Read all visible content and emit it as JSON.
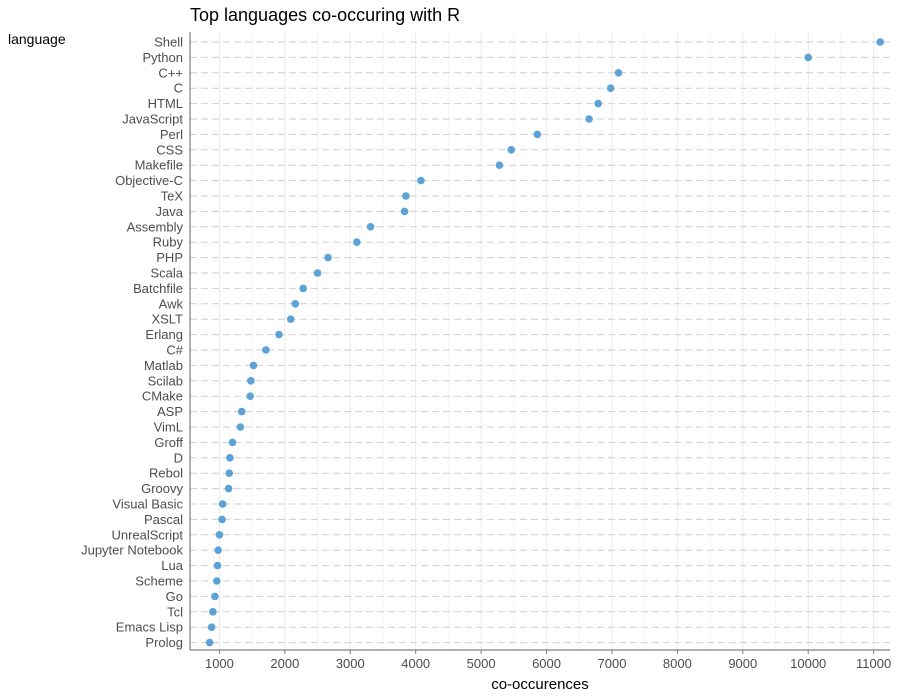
{
  "chart_data": {
    "type": "scatter",
    "title": "Top languages co-occuring with R",
    "xlabel": "co-occurences",
    "ylabel": "language",
    "xlim": [
      550,
      11250
    ],
    "x_ticks": [
      1000,
      2000,
      3000,
      4000,
      5000,
      6000,
      7000,
      8000,
      9000,
      10000,
      11000
    ],
    "grid": true,
    "point_color": "#5ba3d6",
    "categories": [
      "Shell",
      "Python",
      "C++",
      "C",
      "HTML",
      "JavaScript",
      "Perl",
      "CSS",
      "Makefile",
      "Objective-C",
      "TeX",
      "Java",
      "Assembly",
      "Ruby",
      "PHP",
      "Scala",
      "Batchfile",
      "Awk",
      "XSLT",
      "Erlang",
      "C#",
      "Matlab",
      "Scilab",
      "CMake",
      "ASP",
      "VimL",
      "Groff",
      "D",
      "Rebol",
      "Groovy",
      "Visual Basic",
      "Pascal",
      "UnrealScript",
      "Jupyter Notebook",
      "Lua",
      "Scheme",
      "Go",
      "Tcl",
      "Emacs Lisp",
      "Prolog"
    ],
    "values": [
      11100,
      10000,
      7100,
      6980,
      6790,
      6650,
      5860,
      5460,
      5280,
      4080,
      3850,
      3830,
      3310,
      3100,
      2660,
      2500,
      2280,
      2160,
      2090,
      1910,
      1710,
      1520,
      1480,
      1470,
      1340,
      1320,
      1200,
      1160,
      1150,
      1140,
      1050,
      1040,
      1000,
      980,
      970,
      960,
      930,
      900,
      880,
      850
    ]
  }
}
